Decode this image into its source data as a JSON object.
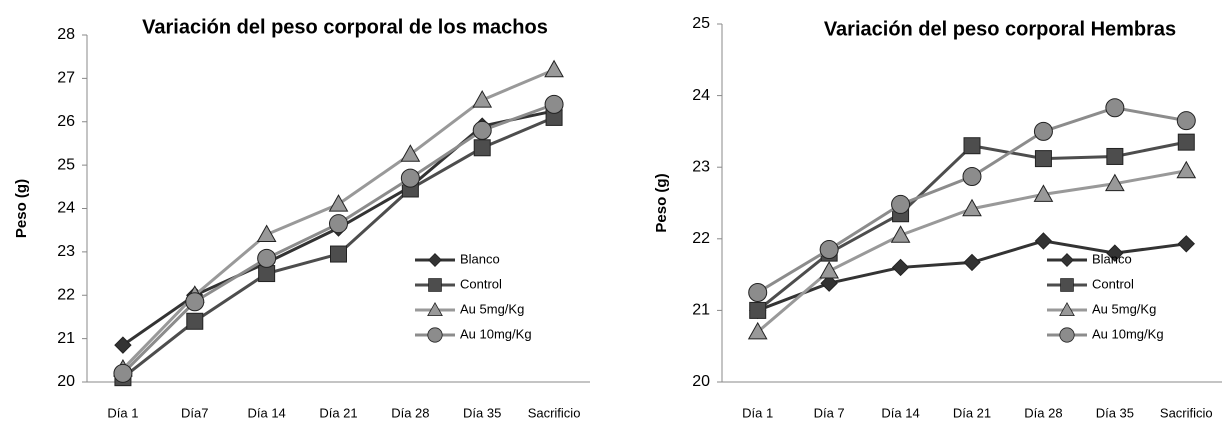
{
  "chart_data": [
    {
      "type": "line",
      "title": "Variación del peso corporal de los machos",
      "ylabel": "Peso (g)",
      "categories": [
        "Día 1",
        "Día7",
        "Día 14",
        "Día 21",
        "Día 28",
        "Día 35",
        "Sacrificio"
      ],
      "ylim": [
        20,
        28
      ],
      "yticks": [
        20,
        21,
        22,
        23,
        24,
        25,
        26,
        27,
        28
      ],
      "legend": "lower right",
      "series": [
        {
          "name": "Blanco",
          "color": "#333333",
          "marker": "diamond",
          "values": [
            20.85,
            22.0,
            22.75,
            23.55,
            24.5,
            25.9,
            26.25
          ]
        },
        {
          "name": "Control",
          "color": "#4d4d4d",
          "marker": "square",
          "values": [
            20.1,
            21.4,
            22.5,
            22.95,
            24.45,
            25.4,
            26.1
          ]
        },
        {
          "name": "Au 5mg/Kg",
          "color": "#999999",
          "marker": "triangle",
          "values": [
            20.3,
            22.0,
            23.4,
            24.1,
            25.25,
            26.5,
            27.2
          ]
        },
        {
          "name": "Au 10mg/Kg",
          "color": "#8c8c8c",
          "marker": "circle",
          "values": [
            20.2,
            21.85,
            22.85,
            23.65,
            24.7,
            25.8,
            26.4
          ]
        }
      ]
    },
    {
      "type": "line",
      "title": "Variación del peso corporal Hembras",
      "ylabel": "Peso (g)",
      "categories": [
        "Día 1",
        "Día 7",
        "Día 14",
        "Día 21",
        "Día 28",
        "Día 35",
        "Sacrificio"
      ],
      "ylim": [
        20,
        25
      ],
      "yticks": [
        20,
        21,
        22,
        23,
        24,
        25
      ],
      "legend": "lower right",
      "series": [
        {
          "name": "Blanco",
          "color": "#333333",
          "marker": "diamond",
          "values": [
            21.0,
            21.38,
            21.6,
            21.67,
            21.97,
            21.8,
            21.93
          ]
        },
        {
          "name": "Control",
          "color": "#4d4d4d",
          "marker": "square",
          "values": [
            21.0,
            21.8,
            22.35,
            23.3,
            23.12,
            23.15,
            23.35
          ]
        },
        {
          "name": "Au 5mg/Kg",
          "color": "#999999",
          "marker": "triangle",
          "values": [
            20.7,
            21.55,
            22.05,
            22.42,
            22.62,
            22.77,
            22.95
          ]
        },
        {
          "name": "Au 10mg/Kg",
          "color": "#8c8c8c",
          "marker": "circle",
          "values": [
            21.25,
            21.85,
            22.48,
            22.87,
            23.5,
            23.83,
            23.65
          ]
        }
      ]
    }
  ]
}
